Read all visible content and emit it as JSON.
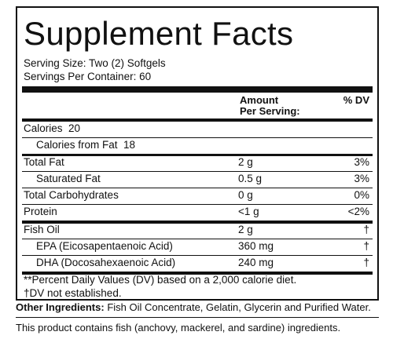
{
  "title": "Supplement Facts",
  "serving_size": "Serving Size: Two (2) Softgels",
  "servings_per_container": "Servings Per Container: 60",
  "header": {
    "amount": "Amount",
    "per_serving": "Per Serving:",
    "dv": "% DV"
  },
  "calories": {
    "label": "Calories",
    "value": "20"
  },
  "calories_from_fat": {
    "label": "Calories from Fat",
    "value": "18"
  },
  "rows": [
    {
      "label": "Total Fat",
      "amount": "2 g",
      "dv": "3%"
    },
    {
      "label": "Saturated Fat",
      "amount": "0.5 g",
      "dv": "3%"
    },
    {
      "label": "Total Carbohydrates",
      "amount": "0 g",
      "dv": "0%"
    },
    {
      "label": "Protein",
      "amount": "<1 g",
      "dv": "<2%"
    },
    {
      "label": "Fish Oil",
      "amount": "2 g",
      "dv": "†"
    },
    {
      "label": "EPA (Eicosapentaenoic Acid)",
      "amount": "360 mg",
      "dv": "†"
    },
    {
      "label": "DHA (Docosahexaenoic Acid)",
      "amount": "240 mg",
      "dv": "†"
    }
  ],
  "footnote_1": "**Percent Daily Values (DV) based on a 2,000 calorie diet.",
  "footnote_2": "†DV not established.",
  "other_ingredients": {
    "label": "Other Ingredients:",
    "text": "Fish Oil Concentrate, Gelatin, Glycerin and Purified Water."
  },
  "allergen": "This product contains fish (anchovy, mackerel, and sardine) ingredients."
}
